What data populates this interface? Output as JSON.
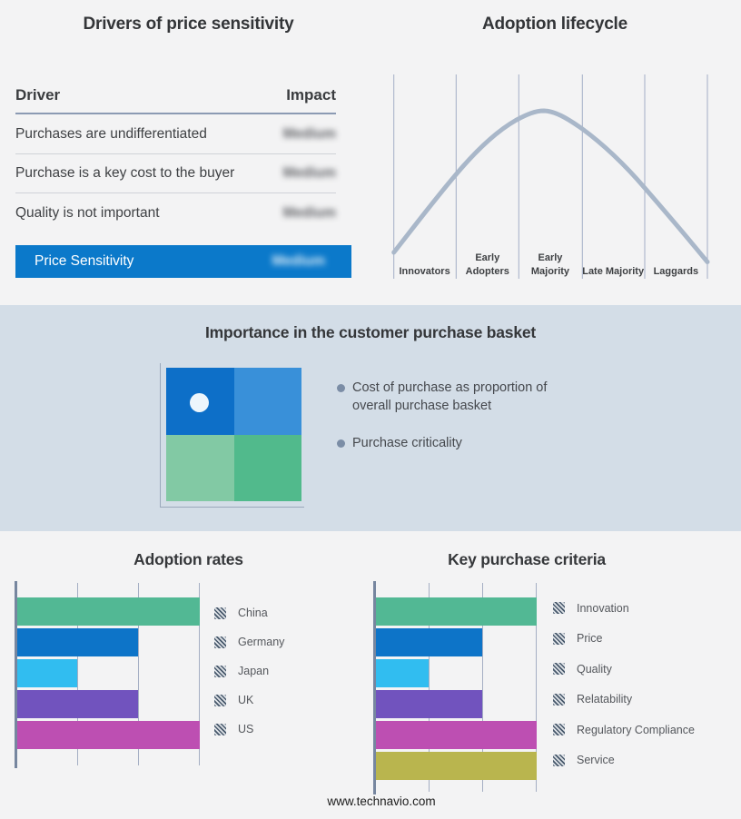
{
  "page": {
    "background": "#f3f3f4",
    "band_background": "#d3dde7"
  },
  "footer": {
    "site": "www.technavio.com"
  },
  "panels": {
    "drivers": {
      "title": "Drivers of price sensitivity",
      "columns": {
        "driver": "Driver",
        "impact": "Impact"
      },
      "rows": [
        {
          "driver": "Purchases are undifferentiated",
          "impact": "Medium"
        },
        {
          "driver": "Purchase is a key cost to the buyer",
          "impact": "Medium"
        },
        {
          "driver": "Quality is not important",
          "impact": "Medium"
        }
      ],
      "highlight_row": {
        "driver": "Price Sensitivity",
        "impact": "Medium",
        "background": "#0b79ca"
      },
      "impact_values_blurred": true
    },
    "lifecycle": {
      "title": "Adoption lifecycle",
      "stages": [
        "Innovators",
        "Early Adopters",
        "Early Majority",
        "Late Majority",
        "Laggards"
      ]
    },
    "basket": {
      "title": "Importance in the customer purchase basket",
      "bullets": [
        "Cost of purchase as proportion of overall purchase basket",
        "Purchase criticality"
      ],
      "quadrant_colors": {
        "top_left": "#0d6fc8",
        "top_right": "#3990d9",
        "bottom_left": "#82c9a4",
        "bottom_right": "#51ba8c",
        "marker_dot": "#edf6fc"
      }
    }
  },
  "chart_data": [
    {
      "id": "adoption-lifecycle",
      "type": "line",
      "title": "Adoption lifecycle",
      "x_categories": [
        "Innovators",
        "Early Adopters",
        "Early Majority",
        "Late Majority",
        "Laggards"
      ],
      "curve_shape": "bell curve peaking within Early Majority",
      "curve_points_norm": [
        {
          "x": 0.0,
          "y": 0.13
        },
        {
          "x": 0.2,
          "y": 0.51
        },
        {
          "x": 0.4,
          "y": 0.76
        },
        {
          "x": 0.475,
          "y": 0.82
        },
        {
          "x": 0.6,
          "y": 0.73
        },
        {
          "x": 0.8,
          "y": 0.44
        },
        {
          "x": 1.0,
          "y": 0.08
        }
      ],
      "curve_color": "#a9b7c9",
      "grid": "vertical stage dividers only",
      "legend": "none"
    },
    {
      "id": "adoption-rates",
      "type": "bar",
      "orientation": "horizontal",
      "title": "Adoption rates",
      "categories": [
        "China",
        "Germany",
        "Japan",
        "UK",
        "US"
      ],
      "values": [
        3,
        2,
        1,
        2,
        3
      ],
      "colors": [
        "#52b894",
        "#0d74c8",
        "#31bdf0",
        "#7153be",
        "#bd4fb2"
      ],
      "xlim": [
        0,
        3
      ],
      "gridlines": [
        0,
        1,
        2,
        3
      ],
      "legend_position": "right"
    },
    {
      "id": "key-purchase-criteria",
      "type": "bar",
      "orientation": "horizontal",
      "title": "Key purchase criteria",
      "categories": [
        "Innovation",
        "Price",
        "Quality",
        "Relatability",
        "Regulatory Compliance",
        "Service"
      ],
      "values": [
        3,
        2,
        1,
        2,
        3,
        3
      ],
      "colors": [
        "#52b894",
        "#0d74c8",
        "#31bdf0",
        "#7153be",
        "#bd4fb2",
        "#b9b54e"
      ],
      "xlim": [
        0,
        3
      ],
      "gridlines": [
        0,
        1,
        2,
        3
      ],
      "legend_position": "right"
    }
  ]
}
